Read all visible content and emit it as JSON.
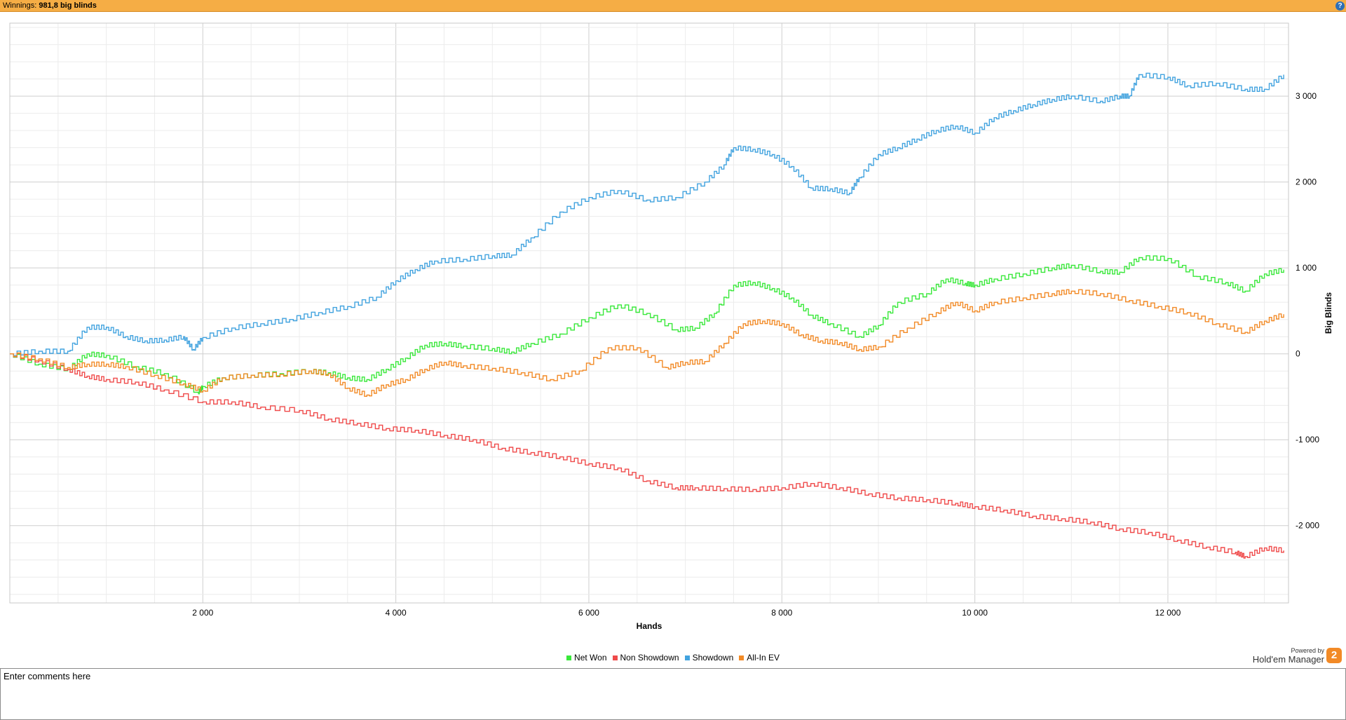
{
  "header": {
    "label": "Winnings:",
    "value": "981,8 big blinds",
    "help_icon": "question-icon"
  },
  "chart_data": {
    "type": "line",
    "xlabel": "Hands",
    "ylabel": "Big Blinds",
    "xlim": [
      0,
      13250
    ],
    "ylim": [
      -2900,
      3850
    ],
    "x_ticks": [
      2000,
      4000,
      6000,
      8000,
      10000,
      12000
    ],
    "x_tick_labels": [
      "2 000",
      "4 000",
      "6 000",
      "8 000",
      "10 000",
      "12 000"
    ],
    "y_ticks": [
      -2000,
      -1000,
      0,
      1000,
      2000,
      3000
    ],
    "y_tick_labels": [
      "-2 000",
      "-1 000",
      "0",
      "1 000",
      "2 000",
      "3 000"
    ],
    "grid": true,
    "legend_position": "bottom",
    "series": [
      {
        "name": "Net Won",
        "color": "#39e83a",
        "x": [
          0,
          300,
          600,
          800,
          1000,
          1300,
          1600,
          1950,
          2000,
          2200,
          2500,
          2800,
          3100,
          3300,
          3500,
          3700,
          3900,
          4100,
          4300,
          4500,
          4700,
          5000,
          5200,
          5400,
          5700,
          6000,
          6300,
          6600,
          6900,
          7100,
          7300,
          7500,
          7700,
          7900,
          8100,
          8300,
          8500,
          8800,
          9000,
          9200,
          9500,
          9700,
          9900,
          10000,
          10200,
          10500,
          10800,
          11000,
          11300,
          11500,
          11700,
          12000,
          12300,
          12600,
          12800,
          13000,
          13200
        ],
        "y": [
          0,
          -120,
          -180,
          0,
          -20,
          -150,
          -230,
          -450,
          -380,
          -280,
          -250,
          -230,
          -200,
          -220,
          -280,
          -300,
          -180,
          -50,
          100,
          120,
          90,
          60,
          20,
          120,
          230,
          420,
          570,
          470,
          280,
          300,
          470,
          800,
          830,
          760,
          650,
          450,
          350,
          200,
          330,
          600,
          700,
          870,
          820,
          800,
          870,
          930,
          1000,
          1030,
          960,
          950,
          1120,
          1110,
          900,
          830,
          730,
          930,
          980
        ]
      },
      {
        "name": "Non Showdown",
        "color": "#ef4a4a",
        "x": [
          0,
          300,
          600,
          800,
          1000,
          1300,
          1600,
          2000,
          2300,
          2600,
          3000,
          3300,
          3600,
          3900,
          4200,
          4500,
          4800,
          5100,
          5400,
          5700,
          6000,
          6300,
          6600,
          6900,
          7100,
          7400,
          7700,
          8000,
          8300,
          8600,
          8900,
          9200,
          9500,
          9800,
          10000,
          10300,
          10600,
          10900,
          11200,
          11500,
          11800,
          12100,
          12400,
          12700,
          12800,
          13000,
          13200
        ],
        "y": [
          0,
          -80,
          -180,
          -260,
          -300,
          -330,
          -420,
          -560,
          -560,
          -620,
          -660,
          -760,
          -810,
          -870,
          -890,
          -950,
          -1000,
          -1100,
          -1150,
          -1200,
          -1280,
          -1330,
          -1480,
          -1560,
          -1560,
          -1570,
          -1580,
          -1560,
          -1510,
          -1560,
          -1630,
          -1680,
          -1700,
          -1740,
          -1780,
          -1820,
          -1890,
          -1920,
          -1960,
          -2040,
          -2080,
          -2170,
          -2250,
          -2310,
          -2360,
          -2260,
          -2290
        ]
      },
      {
        "name": "Showdown",
        "color": "#42a3df",
        "x": [
          0,
          300,
          600,
          800,
          1000,
          1200,
          1400,
          1600,
          1800,
          1900,
          2000,
          2300,
          2600,
          2900,
          3200,
          3500,
          3800,
          4000,
          4200,
          4400,
          4700,
          5000,
          5200,
          5400,
          5700,
          6000,
          6300,
          6600,
          6900,
          7200,
          7400,
          7500,
          7700,
          7900,
          8100,
          8300,
          8500,
          8700,
          8800,
          9000,
          9200,
          9400,
          9600,
          9800,
          10000,
          10200,
          10400,
          10600,
          10800,
          11000,
          11300,
          11500,
          11600,
          11700,
          12000,
          12200,
          12500,
          12800,
          13000,
          13200
        ],
        "y": [
          0,
          30,
          30,
          310,
          310,
          200,
          150,
          160,
          200,
          50,
          190,
          300,
          350,
          400,
          480,
          550,
          660,
          850,
          980,
          1080,
          1100,
          1140,
          1150,
          1350,
          1650,
          1820,
          1900,
          1790,
          1820,
          2000,
          2200,
          2400,
          2380,
          2320,
          2180,
          1930,
          1920,
          1870,
          2050,
          2320,
          2400,
          2500,
          2600,
          2650,
          2570,
          2750,
          2830,
          2900,
          2960,
          3000,
          2940,
          3000,
          3000,
          3250,
          3220,
          3120,
          3150,
          3080,
          3080,
          3250
        ]
      },
      {
        "name": "All-In EV",
        "color": "#f28a26",
        "x": [
          0,
          300,
          600,
          800,
          1000,
          1200,
          1500,
          1800,
          2000,
          2200,
          2500,
          2800,
          3100,
          3300,
          3500,
          3700,
          3900,
          4100,
          4300,
          4500,
          4700,
          5000,
          5300,
          5600,
          5900,
          6200,
          6500,
          6800,
          7000,
          7200,
          7400,
          7600,
          7800,
          8000,
          8200,
          8400,
          8600,
          8800,
          9000,
          9300,
          9600,
          9800,
          10000,
          10200,
          10500,
          10800,
          11000,
          11300,
          11600,
          11900,
          12200,
          12500,
          12800,
          13000,
          13200
        ],
        "y": [
          0,
          -60,
          -160,
          -120,
          -120,
          -150,
          -250,
          -350,
          -430,
          -280,
          -250,
          -240,
          -200,
          -230,
          -400,
          -480,
          -360,
          -300,
          -180,
          -100,
          -140,
          -170,
          -220,
          -300,
          -200,
          70,
          70,
          -160,
          -100,
          -90,
          120,
          350,
          380,
          350,
          220,
          150,
          130,
          50,
          80,
          300,
          480,
          600,
          500,
          600,
          650,
          700,
          730,
          700,
          620,
          550,
          480,
          350,
          250,
          380,
          460
        ]
      }
    ]
  },
  "branding": {
    "powered_by": "Powered by",
    "product": "Hold'em Manager",
    "logo_text": "2"
  },
  "comments": {
    "placeholder": "Enter comments here"
  }
}
